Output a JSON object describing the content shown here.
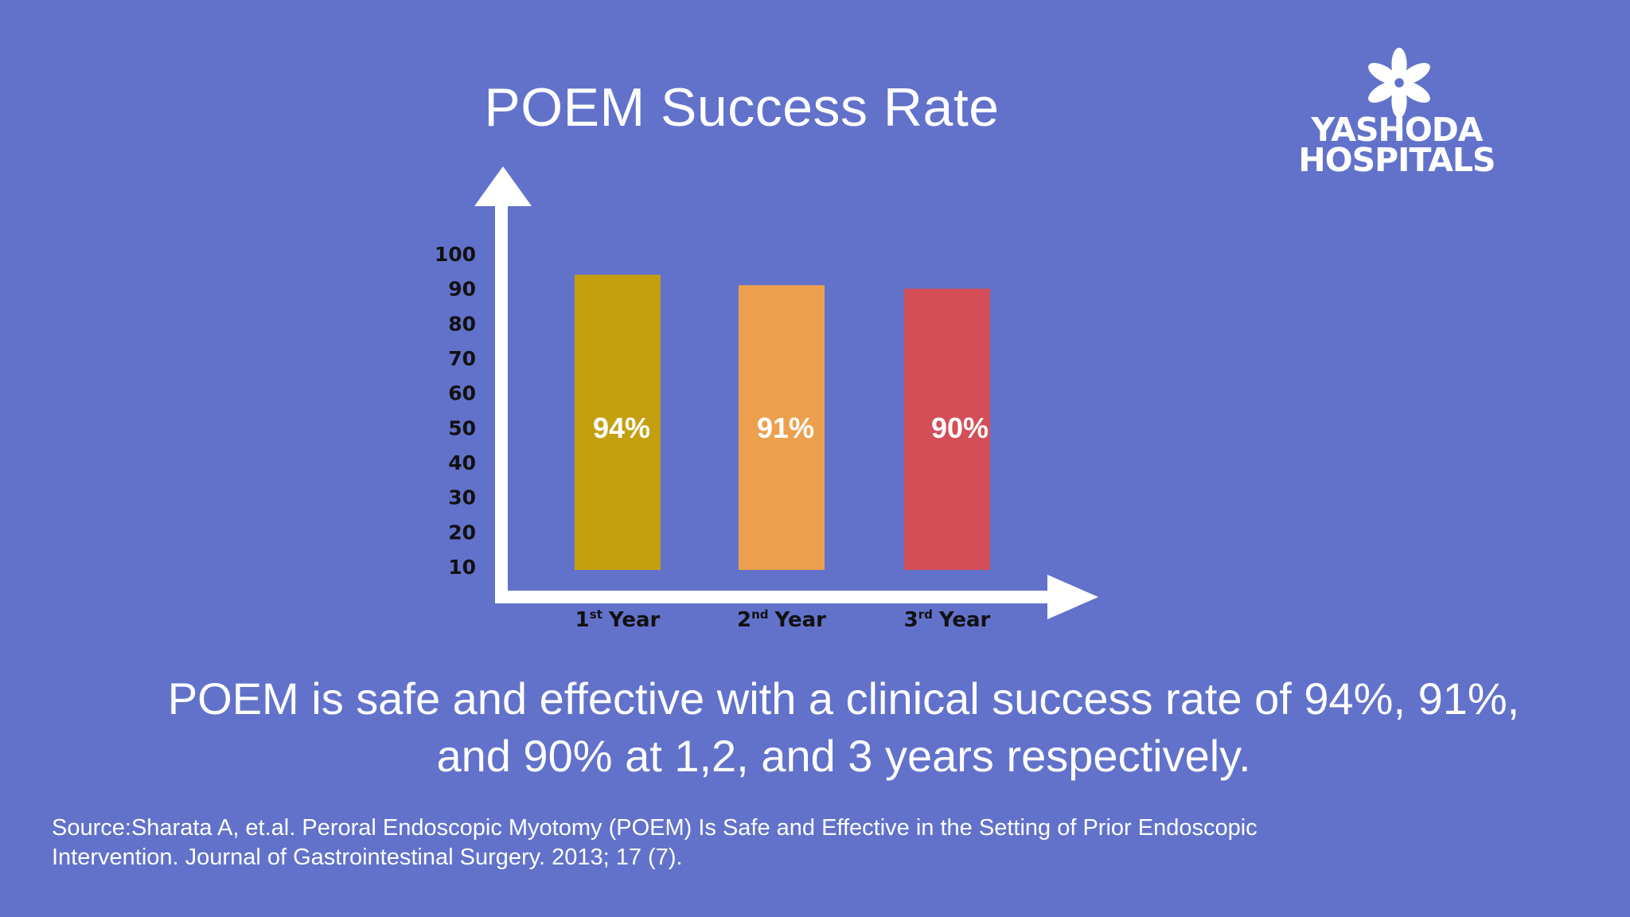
{
  "slide": {
    "title": "POEM Success Rate",
    "summary_line1": "POEM is safe and effective with a clinical success rate of 94%, 91%,",
    "summary_line2": "and 90% at 1,2, and 3 years respectively.",
    "source_line1": "Source:Sharata A, et.al. Peroral Endoscopic Myotomy (POEM) Is Safe and Effective in the Setting of Prior Endoscopic",
    "source_line2": "Intervention. Journal of Gastrointestinal Surgery. 2013; 17 (7)."
  },
  "logo": {
    "line1": "YASHODA",
    "line2": "HOSPITALS",
    "icon": "flower-icon"
  },
  "colors": {
    "background": "#6272CA",
    "axis": "#ffffff"
  },
  "chart_data": {
    "type": "bar",
    "title": "POEM Success Rate",
    "xlabel": "",
    "ylabel": "",
    "categories": [
      {
        "num": "1",
        "sup": "st",
        "word": "Year"
      },
      {
        "num": "2",
        "sup": "nd",
        "word": "Year"
      },
      {
        "num": "3",
        "sup": "rd",
        "word": "Year"
      }
    ],
    "values": [
      94,
      91,
      90
    ],
    "data_labels": [
      "94%",
      "91%",
      "90%"
    ],
    "bar_colors": [
      "#C4A011",
      "#ECA04E",
      "#D34E57"
    ],
    "yticks": [
      10,
      20,
      30,
      40,
      50,
      60,
      70,
      80,
      90,
      100
    ],
    "ylim": [
      10,
      100
    ],
    "grid": false,
    "legend": "none"
  }
}
